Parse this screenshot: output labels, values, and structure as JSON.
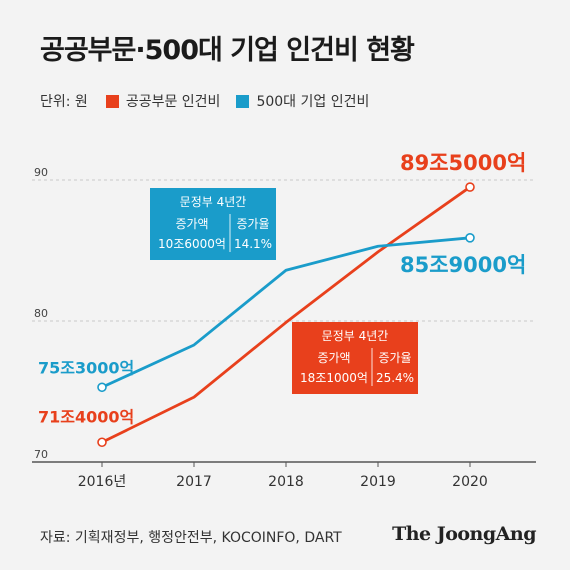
{
  "title": "공공부문·500대 기업 인건비 현황",
  "unit_label": "단위: 원",
  "source": "자료: 기획재정부, 행정안전부, KOCOINFO, DART",
  "brand": "The JoongAng",
  "colors": {
    "public": "#e8401c",
    "top500": "#1a9cca",
    "grid": "#c8c8c8",
    "axis": "#555555",
    "background": "#f3f3f3"
  },
  "chart_data": {
    "type": "line",
    "categories": [
      "2016년",
      "2017",
      "2018",
      "2019",
      "2020"
    ],
    "ylim": [
      70,
      90
    ],
    "yticks": [
      70,
      80,
      90
    ],
    "grid": true,
    "legend": "top-left",
    "series": [
      {
        "name": "공공부문 인건비",
        "color": "#e8401c",
        "values": [
          71.4,
          74.6,
          79.9,
          84.9,
          89.5
        ],
        "start_label": "71조4000억",
        "end_label": "89조5000억"
      },
      {
        "name": "500대 기업 인건비",
        "color": "#1a9cca",
        "values": [
          75.3,
          78.3,
          83.6,
          85.3,
          85.9
        ],
        "start_label": "75조3000억",
        "end_label": "85조9000억"
      }
    ],
    "annotations": [
      {
        "series": "500대 기업 인건비",
        "title": "문정부 4년간",
        "col1_head": "증가액",
        "col1_value": "10조6000억",
        "col2_head": "증가율",
        "col2_value": "14.1%"
      },
      {
        "series": "공공부문 인건비",
        "title": "문정부 4년간",
        "col1_head": "증가액",
        "col1_value": "18조1000억",
        "col2_head": "증가율",
        "col2_value": "25.4%"
      }
    ]
  }
}
